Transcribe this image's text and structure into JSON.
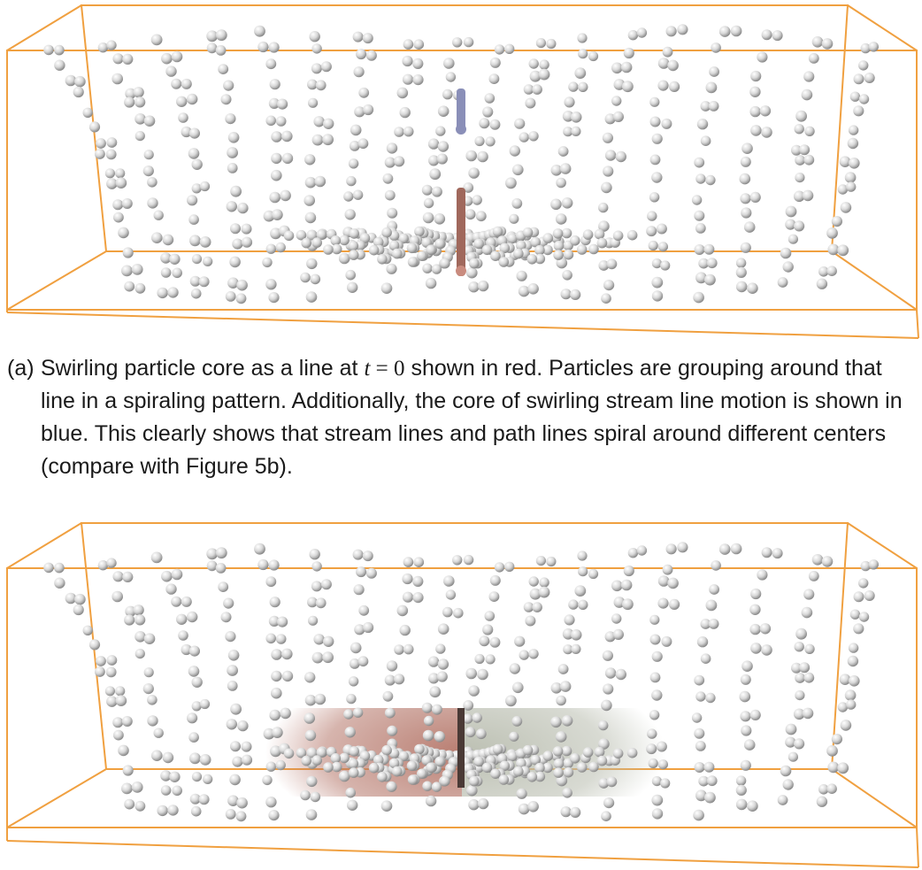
{
  "figure": {
    "panel_a": {
      "caption_label": "(a)",
      "caption_part1": "Swirling particle core as a line at",
      "caption_var": "t",
      "caption_eq": " = 0",
      "caption_part2": "shown in red. Particles are grouping around that line in a spiraling pattern. Additionally, the core of swirling stream line motion is shown in blue. This clearly shows that stream lines and path lines spiral around different centers (compare with Figure 5b)."
    },
    "colors": {
      "box_edge": "#f0a040",
      "particle_fill": "#d8d8d8",
      "particle_highlight": "#ffffff",
      "particle_shadow": "#8a8a8a",
      "core_red": "#a0685c",
      "core_blue": "#8a8fb8",
      "plane_red": "#b5776a",
      "plane_gray": "#b8bcae"
    }
  }
}
